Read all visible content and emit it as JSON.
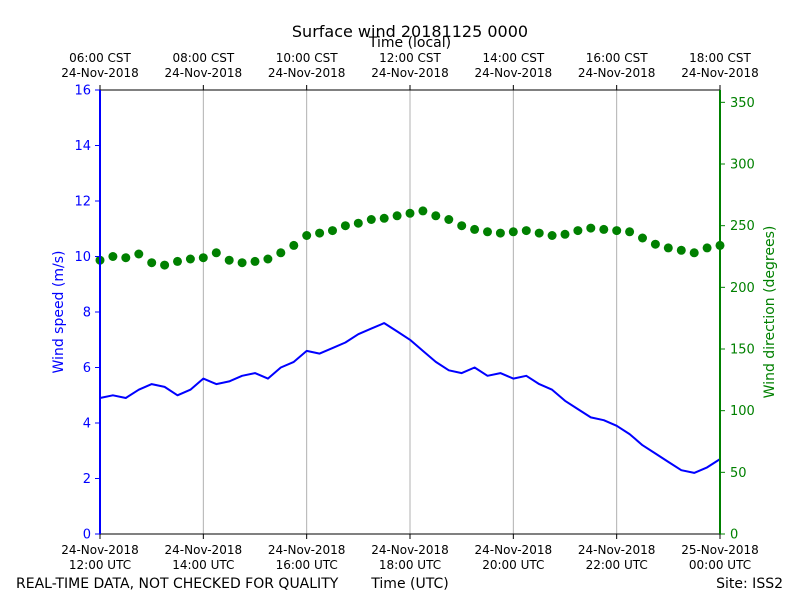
{
  "chart_data": {
    "type": "line+scatter",
    "title": "Surface wind 20181125 0000",
    "top_axis_label": "Time (local)",
    "bottom_axis_label": "Time (UTC)",
    "left_axis_label": "Wind speed (m/s)",
    "right_axis_label": "Wind direction (degrees)",
    "footer_left": "REAL-TIME DATA, NOT CHECKED FOR QUALITY",
    "footer_right": "Site: ISS2",
    "x_range_hours_utc": [
      12,
      24
    ],
    "bottom_ticks": [
      {
        "hour": 12,
        "line1": "24-Nov-2018",
        "line2": "12:00 UTC"
      },
      {
        "hour": 14,
        "line1": "24-Nov-2018",
        "line2": "14:00 UTC"
      },
      {
        "hour": 16,
        "line1": "24-Nov-2018",
        "line2": "16:00 UTC"
      },
      {
        "hour": 18,
        "line1": "24-Nov-2018",
        "line2": "18:00 UTC"
      },
      {
        "hour": 20,
        "line1": "24-Nov-2018",
        "line2": "20:00 UTC"
      },
      {
        "hour": 22,
        "line1": "24-Nov-2018",
        "line2": "22:00 UTC"
      },
      {
        "hour": 24,
        "line1": "25-Nov-2018",
        "line2": "00:00 UTC"
      }
    ],
    "top_ticks": [
      {
        "hour": 12,
        "line1": "06:00 CST",
        "line2": "24-Nov-2018"
      },
      {
        "hour": 14,
        "line1": "08:00 CST",
        "line2": "24-Nov-2018"
      },
      {
        "hour": 16,
        "line1": "10:00 CST",
        "line2": "24-Nov-2018"
      },
      {
        "hour": 18,
        "line1": "12:00 CST",
        "line2": "24-Nov-2018"
      },
      {
        "hour": 20,
        "line1": "14:00 CST",
        "line2": "24-Nov-2018"
      },
      {
        "hour": 22,
        "line1": "16:00 CST",
        "line2": "24-Nov-2018"
      },
      {
        "hour": 24,
        "line1": "18:00 CST",
        "line2": "24-Nov-2018"
      }
    ],
    "left_axis": {
      "min": 0,
      "max": 16,
      "ticks": [
        0,
        2,
        4,
        6,
        8,
        10,
        12,
        14,
        16
      ],
      "color": "#0000ff"
    },
    "right_axis": {
      "min": 0,
      "max": 360,
      "ticks": [
        0,
        50,
        100,
        150,
        200,
        250,
        300,
        350
      ],
      "color": "#008000"
    },
    "series": [
      {
        "name": "Wind speed",
        "axis": "left",
        "style": "line",
        "color": "#0000ff",
        "x_hours": [
          12.0,
          12.25,
          12.5,
          12.75,
          13.0,
          13.25,
          13.5,
          13.75,
          14.0,
          14.25,
          14.5,
          14.75,
          15.0,
          15.25,
          15.5,
          15.75,
          16.0,
          16.25,
          16.5,
          16.75,
          17.0,
          17.25,
          17.5,
          17.75,
          18.0,
          18.25,
          18.5,
          18.75,
          19.0,
          19.25,
          19.5,
          19.75,
          20.0,
          20.25,
          20.5,
          20.75,
          21.0,
          21.25,
          21.5,
          21.75,
          22.0,
          22.25,
          22.5,
          22.75,
          23.0,
          23.25,
          23.5,
          23.75,
          24.0
        ],
        "values": [
          4.9,
          5.0,
          4.9,
          5.2,
          5.4,
          5.3,
          5.0,
          5.2,
          5.6,
          5.4,
          5.5,
          5.7,
          5.8,
          5.6,
          6.0,
          6.2,
          6.6,
          6.5,
          6.7,
          6.9,
          7.2,
          7.4,
          7.6,
          7.3,
          7.0,
          6.6,
          6.2,
          5.9,
          5.8,
          6.0,
          5.7,
          5.8,
          5.6,
          5.7,
          5.4,
          5.2,
          4.8,
          4.5,
          4.2,
          4.1,
          3.9,
          3.6,
          3.2,
          2.9,
          2.6,
          2.3,
          2.2,
          2.4,
          2.7
        ]
      },
      {
        "name": "Wind direction",
        "axis": "right",
        "style": "scatter",
        "color": "#008000",
        "x_hours": [
          12.0,
          12.25,
          12.5,
          12.75,
          13.0,
          13.25,
          13.5,
          13.75,
          14.0,
          14.25,
          14.5,
          14.75,
          15.0,
          15.25,
          15.5,
          15.75,
          16.0,
          16.25,
          16.5,
          16.75,
          17.0,
          17.25,
          17.5,
          17.75,
          18.0,
          18.25,
          18.5,
          18.75,
          19.0,
          19.25,
          19.5,
          19.75,
          20.0,
          20.25,
          20.5,
          20.75,
          21.0,
          21.25,
          21.5,
          21.75,
          22.0,
          22.25,
          22.5,
          22.75,
          23.0,
          23.25,
          23.5,
          23.75,
          24.0
        ],
        "values": [
          222,
          225,
          224,
          227,
          220,
          218,
          221,
          223,
          224,
          228,
          222,
          220,
          221,
          223,
          228,
          234,
          242,
          244,
          246,
          250,
          252,
          255,
          256,
          258,
          260,
          262,
          258,
          255,
          250,
          247,
          245,
          244,
          245,
          246,
          244,
          242,
          243,
          246,
          248,
          247,
          246,
          245,
          240,
          235,
          232,
          230,
          228,
          232,
          234
        ]
      }
    ]
  }
}
